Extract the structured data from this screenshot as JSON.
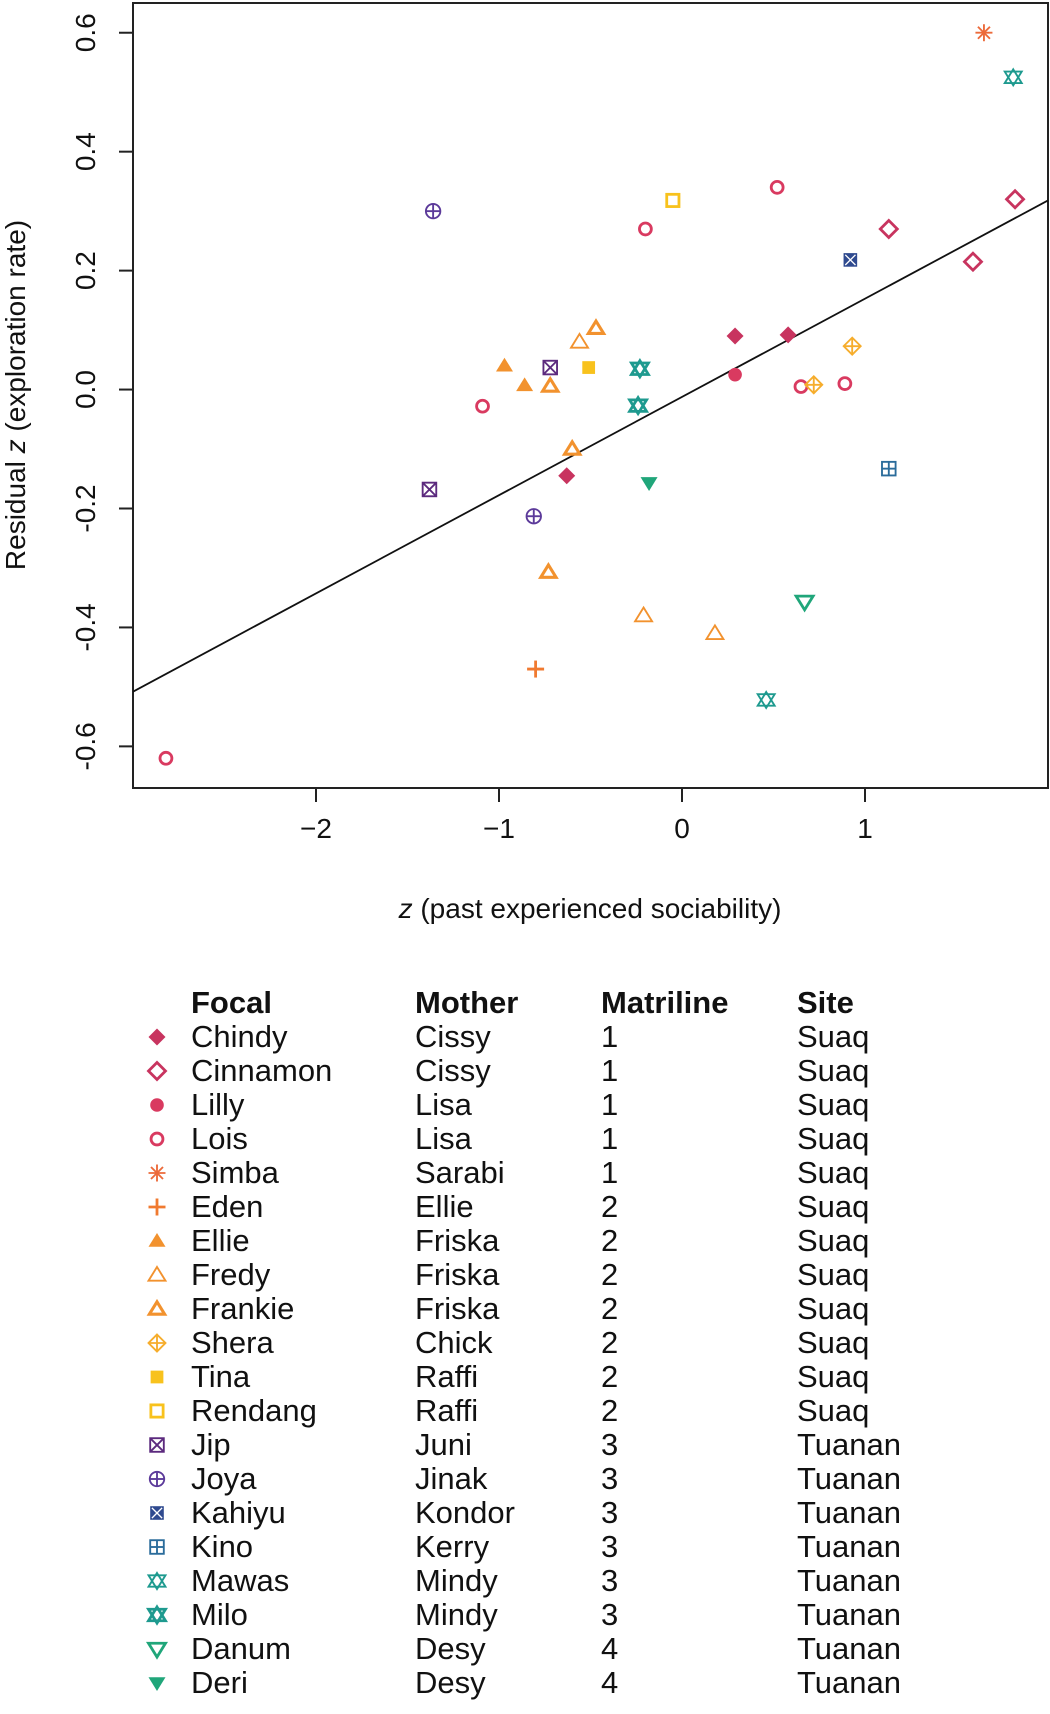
{
  "chart_data": {
    "type": "scatter",
    "xlabel": "z (past experienced sociability)",
    "xlabel_italic_prefix": "z",
    "xlabel_rest": " (past experienced sociability)",
    "ylabel": "Residual z (exploration rate)",
    "ylabel_prefix": "Residual ",
    "ylabel_italic": "z",
    "ylabel_rest": " (exploration rate)",
    "xlim": [
      -3.0,
      2.0
    ],
    "ylim": [
      -0.67,
      0.65
    ],
    "xticks": [
      -2,
      -1,
      0,
      1
    ],
    "xtick_labels": [
      "−2",
      "−1",
      "0",
      "1"
    ],
    "yticks": [
      -0.6,
      -0.4,
      -0.2,
      0.0,
      0.2,
      0.4,
      0.6
    ],
    "ytick_labels": [
      "-0.6",
      "-0.4",
      "-0.2",
      "0.0",
      "0.2",
      "0.4",
      "0.6"
    ],
    "grid": false,
    "regression_line": {
      "x": [
        -3.0,
        2.0
      ],
      "y": [
        -0.508,
        0.318
      ]
    },
    "series": [
      {
        "name": "Chindy",
        "mother": "Cissy",
        "matriline": "1",
        "site": "Suaq",
        "color": "#c8345f",
        "marker": "diamond-filled",
        "points": [
          [
            -0.63,
            -0.145
          ],
          [
            0.29,
            0.09
          ],
          [
            0.58,
            0.092
          ]
        ]
      },
      {
        "name": "Cinnamon",
        "mother": "Cissy",
        "matriline": "1",
        "site": "Suaq",
        "color": "#c8345f",
        "marker": "diamond-open",
        "points": [
          [
            1.13,
            0.27
          ],
          [
            1.59,
            0.215
          ],
          [
            1.82,
            0.32
          ]
        ]
      },
      {
        "name": "Lilly",
        "mother": "Lisa",
        "matriline": "1",
        "site": "Suaq",
        "color": "#d93a60",
        "marker": "circle-filled",
        "points": [
          [
            0.29,
            0.025
          ]
        ]
      },
      {
        "name": "Lois",
        "mother": "Lisa",
        "matriline": "1",
        "site": "Suaq",
        "color": "#d93a60",
        "marker": "circle-open",
        "points": [
          [
            -2.82,
            -0.62
          ],
          [
            -1.09,
            -0.028
          ],
          [
            -0.2,
            0.27
          ],
          [
            0.52,
            0.34
          ],
          [
            0.65,
            0.005
          ],
          [
            0.89,
            0.01
          ]
        ]
      },
      {
        "name": "Simba",
        "mother": "Sarabi",
        "matriline": "1",
        "site": "Suaq",
        "color": "#ec6a3a",
        "marker": "asterisk",
        "points": [
          [
            1.65,
            0.6
          ]
        ]
      },
      {
        "name": "Eden",
        "mother": "Ellie",
        "matriline": "2",
        "site": "Suaq",
        "color": "#f07a30",
        "marker": "plus",
        "points": [
          [
            -0.8,
            -0.47
          ]
        ]
      },
      {
        "name": "Ellie",
        "mother": "Friska",
        "matriline": "2",
        "site": "Suaq",
        "color": "#f2922e",
        "marker": "triangle-filled",
        "points": [
          [
            -0.97,
            0.04
          ],
          [
            -0.86,
            0.007
          ]
        ]
      },
      {
        "name": "Fredy",
        "mother": "Friska",
        "matriline": "2",
        "site": "Suaq",
        "color": "#f2922e",
        "marker": "triangle-open",
        "points": [
          [
            -0.56,
            0.08
          ],
          [
            -0.21,
            -0.38
          ],
          [
            0.18,
            -0.41
          ]
        ]
      },
      {
        "name": "Frankie",
        "mother": "Friska",
        "matriline": "2",
        "site": "Suaq",
        "color": "#f2922e",
        "marker": "triangle-open-bold",
        "points": [
          [
            -0.47,
            0.103
          ],
          [
            -0.6,
            -0.1
          ],
          [
            -0.73,
            -0.307
          ],
          [
            -0.72,
            0.006
          ]
        ]
      },
      {
        "name": "Shera",
        "mother": "Chick",
        "matriline": "2",
        "site": "Suaq",
        "color": "#f6ad2c",
        "marker": "diamond-plus",
        "points": [
          [
            0.72,
            0.008
          ],
          [
            0.93,
            0.073
          ]
        ]
      },
      {
        "name": "Tina",
        "mother": "Raffi",
        "matriline": "2",
        "site": "Suaq",
        "color": "#f8c21d",
        "marker": "square-filled",
        "points": [
          [
            -0.51,
            0.037
          ]
        ]
      },
      {
        "name": "Rendang",
        "mother": "Raffi",
        "matriline": "2",
        "site": "Suaq",
        "color": "#f8c21d",
        "marker": "square-open",
        "points": [
          [
            -0.05,
            0.318
          ]
        ]
      },
      {
        "name": "Jip",
        "mother": "Juni",
        "matriline": "3",
        "site": "Tuanan",
        "color": "#5c2a7e",
        "marker": "square-x",
        "points": [
          [
            -1.38,
            -0.168
          ],
          [
            -0.72,
            0.037
          ]
        ]
      },
      {
        "name": "Joya",
        "mother": "Jinak",
        "matriline": "3",
        "site": "Tuanan",
        "color": "#5c3a9a",
        "marker": "circle-plus",
        "points": [
          [
            -1.36,
            0.3
          ],
          [
            -0.81,
            -0.213
          ]
        ]
      },
      {
        "name": "Kahiyu",
        "mother": "Kondor",
        "matriline": "3",
        "site": "Tuanan",
        "color": "#2f4a8f",
        "marker": "square-x-solid",
        "points": [
          [
            0.92,
            0.218
          ]
        ]
      },
      {
        "name": "Kino",
        "mother": "Kerry",
        "matriline": "3",
        "site": "Tuanan",
        "color": "#2b6c9b",
        "marker": "square-plus",
        "points": [
          [
            1.13,
            -0.133
          ]
        ]
      },
      {
        "name": "Mawas",
        "mother": "Mindy",
        "matriline": "3",
        "site": "Tuanan",
        "color": "#1e9a8f",
        "marker": "star-of-david",
        "points": [
          [
            1.81,
            0.525
          ],
          [
            0.46,
            -0.522
          ]
        ]
      },
      {
        "name": "Milo",
        "mother": "Mindy",
        "matriline": "3",
        "site": "Tuanan",
        "color": "#1e9a8f",
        "marker": "star-of-david-bold",
        "points": [
          [
            -0.23,
            0.035
          ],
          [
            -0.24,
            -0.027
          ]
        ]
      },
      {
        "name": "Danum",
        "mother": "Desy",
        "matriline": "4",
        "site": "Tuanan",
        "color": "#20a67a",
        "marker": "triangle-down-open",
        "points": [
          [
            0.67,
            -0.357
          ]
        ]
      },
      {
        "name": "Deri",
        "mother": "Desy",
        "matriline": "4",
        "site": "Tuanan",
        "color": "#20a67a",
        "marker": "triangle-down-filled",
        "points": [
          [
            -0.18,
            -0.157
          ]
        ]
      }
    ]
  },
  "legend": {
    "headers": {
      "focal": "Focal",
      "mother": "Mother",
      "matriline": "Matriline",
      "site": "Site"
    }
  }
}
